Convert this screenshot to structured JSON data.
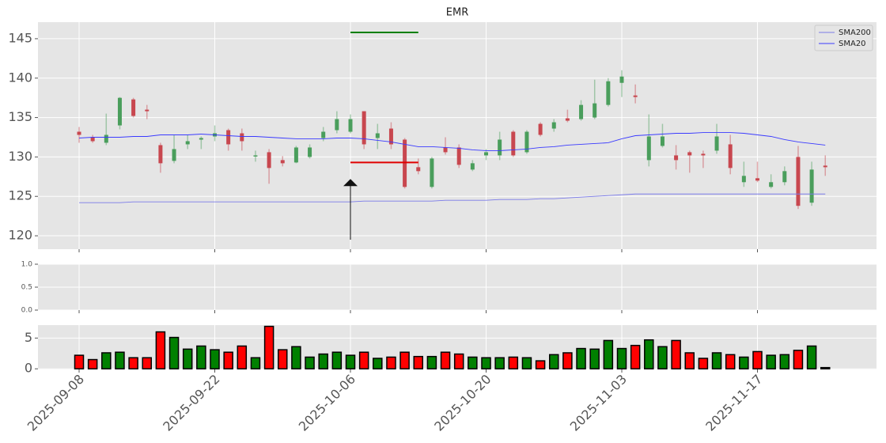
{
  "chart_data": [
    {
      "type": "candlestick",
      "title": "EMR",
      "categories": [
        "2025-09-08",
        null,
        null,
        null,
        null,
        null,
        null,
        null,
        null,
        null,
        "2025-09-22",
        null,
        null,
        null,
        null,
        null,
        null,
        null,
        null,
        null,
        "2025-10-06",
        null,
        null,
        null,
        null,
        null,
        null,
        null,
        null,
        null,
        "2025-10-20",
        null,
        null,
        null,
        null,
        null,
        null,
        null,
        null,
        null,
        "2025-11-03",
        null,
        null,
        null,
        null,
        null,
        null,
        null,
        null,
        null,
        "2025-11-17",
        null,
        null,
        null,
        null,
        null
      ],
      "open": [
        133.2,
        132.5,
        131.8,
        134.0,
        137.3,
        136.0,
        131.5,
        129.5,
        131.6,
        132.2,
        132.6,
        133.4,
        133.0,
        130.1,
        130.6,
        129.6,
        129.3,
        130.0,
        132.4,
        133.4,
        133.2,
        135.8,
        132.4,
        133.6,
        132.2,
        128.7,
        126.2,
        131.2,
        131.2,
        128.4,
        130.2,
        130.2,
        133.2,
        130.6,
        134.2,
        133.6,
        134.9,
        134.8,
        135.0,
        136.6,
        139.4,
        137.8,
        129.6,
        131.4,
        130.2,
        130.6,
        130.4,
        130.8,
        131.6,
        126.8,
        127.3,
        126.2,
        126.8,
        130.0,
        124.2,
        128.9
      ],
      "high": [
        133.8,
        132.8,
        135.5,
        137.6,
        137.5,
        136.6,
        131.8,
        132.8,
        132.8,
        132.6,
        134.0,
        133.6,
        133.6,
        130.8,
        131.0,
        130.1,
        131.4,
        131.6,
        133.8,
        135.8,
        135.4,
        135.8,
        134.2,
        134.4,
        132.4,
        129.8,
        130.0,
        132.5,
        131.6,
        129.6,
        131.0,
        133.2,
        133.4,
        133.4,
        134.4,
        134.8,
        136.0,
        137.2,
        139.8,
        140.0,
        141.0,
        139.2,
        135.4,
        134.2,
        131.5,
        130.8,
        130.8,
        134.2,
        132.8,
        129.4,
        129.4,
        127.8,
        128.8,
        131.4,
        129.4,
        130.2
      ],
      "low": [
        131.8,
        131.8,
        131.5,
        133.5,
        135.0,
        134.8,
        128.0,
        129.2,
        131.0,
        131.0,
        132.0,
        130.8,
        130.8,
        129.4,
        126.6,
        128.8,
        129.2,
        129.8,
        132.0,
        133.0,
        133.0,
        131.0,
        131.0,
        131.0,
        126.0,
        127.8,
        126.0,
        130.3,
        128.6,
        128.2,
        129.6,
        129.6,
        130.0,
        130.4,
        132.6,
        133.2,
        134.4,
        134.6,
        134.8,
        136.4,
        137.6,
        136.8,
        128.8,
        131.2,
        128.4,
        128.0,
        128.6,
        130.4,
        127.8,
        126.2,
        126.8,
        126.0,
        126.4,
        123.4,
        123.8,
        127.6
      ],
      "close": [
        132.8,
        132.0,
        132.8,
        137.5,
        135.2,
        135.8,
        129.2,
        131.0,
        132.0,
        132.4,
        133.0,
        131.6,
        132.0,
        130.2,
        128.6,
        129.2,
        131.2,
        131.2,
        133.2,
        134.8,
        134.8,
        131.6,
        133.0,
        131.6,
        126.2,
        128.2,
        129.8,
        130.6,
        129.0,
        129.2,
        130.6,
        132.2,
        130.2,
        133.2,
        132.8,
        134.4,
        134.6,
        136.6,
        136.8,
        139.6,
        140.2,
        137.6,
        132.6,
        132.6,
        129.6,
        130.2,
        130.2,
        132.6,
        128.6,
        127.6,
        127.0,
        126.8,
        128.2,
        123.8,
        128.4,
        128.7
      ],
      "up_color": "#4a9e5c",
      "down_color": "#c8474f",
      "series": [
        {
          "name": "SMA200",
          "color": "#7a7ae8",
          "values": [
            124.2,
            124.2,
            124.2,
            124.2,
            124.3,
            124.3,
            124.3,
            124.3,
            124.3,
            124.3,
            124.3,
            124.3,
            124.3,
            124.3,
            124.3,
            124.3,
            124.3,
            124.3,
            124.3,
            124.3,
            124.3,
            124.4,
            124.4,
            124.4,
            124.4,
            124.4,
            124.4,
            124.5,
            124.5,
            124.5,
            124.5,
            124.6,
            124.6,
            124.6,
            124.7,
            124.7,
            124.8,
            124.9,
            125.0,
            125.1,
            125.2,
            125.3,
            125.3,
            125.3,
            125.3,
            125.3,
            125.3,
            125.3,
            125.3,
            125.3,
            125.3,
            125.3,
            125.3,
            125.3,
            125.3,
            125.3
          ]
        },
        {
          "name": "SMA20",
          "color": "#3a3aff",
          "values": [
            132.4,
            132.5,
            132.5,
            132.5,
            132.6,
            132.6,
            132.8,
            132.8,
            132.8,
            132.9,
            132.8,
            132.7,
            132.6,
            132.6,
            132.5,
            132.4,
            132.3,
            132.3,
            132.3,
            132.4,
            132.4,
            132.3,
            132.1,
            131.9,
            131.6,
            131.3,
            131.3,
            131.2,
            131.1,
            130.9,
            130.8,
            130.8,
            130.9,
            131.0,
            131.2,
            131.3,
            131.5,
            131.6,
            131.7,
            131.8,
            132.3,
            132.7,
            132.8,
            132.9,
            133.0,
            133.0,
            133.1,
            133.1,
            133.1,
            133.0,
            132.8,
            132.6,
            132.2,
            131.9,
            131.7,
            131.5
          ]
        }
      ],
      "ylim": [
        118.3,
        147.1
      ],
      "yticks": [
        120,
        125,
        130,
        135,
        140,
        145
      ],
      "grid": true,
      "legend": "upper right",
      "lines": [
        {
          "y": 145.8,
          "x": [
            20,
            25
          ],
          "color": "#008000"
        },
        {
          "y": 129.3,
          "x": [
            20,
            25
          ],
          "color": "#e00000"
        }
      ],
      "arrow": {
        "x": 20,
        "y": [
          119.5,
          127.2
        ],
        "color": "#111"
      }
    },
    {
      "type": "empty",
      "ylim": [
        0,
        1
      ],
      "yticks": [
        {
          "value": 0,
          "label": "0.0"
        },
        {
          "value": 0.5,
          "label": "0.5"
        },
        {
          "value": 1,
          "label": "1.0"
        }
      ],
      "grid": true
    },
    {
      "type": "bar",
      "values": [
        2.2,
        1.5,
        2.6,
        2.7,
        1.8,
        1.8,
        6.0,
        5.1,
        3.2,
        3.7,
        3.1,
        2.7,
        3.7,
        1.8,
        6.9,
        3.1,
        3.6,
        1.9,
        2.4,
        2.7,
        2.2,
        2.7,
        1.7,
        1.9,
        2.7,
        2.0,
        2.0,
        2.7,
        2.4,
        1.9,
        1.8,
        1.8,
        1.9,
        1.8,
        1.3,
        2.3,
        2.6,
        3.3,
        3.2,
        4.6,
        3.3,
        3.8,
        4.7,
        3.6,
        4.6,
        2.6,
        1.7,
        2.6,
        2.3,
        1.9,
        2.8,
        2.2,
        2.3,
        3.0,
        3.7,
        0.2
      ],
      "colors": [
        "red",
        "red",
        "green",
        "green",
        "red",
        "red",
        "red",
        "green",
        "green",
        "green",
        "green",
        "red",
        "red",
        "green",
        "red",
        "red",
        "green",
        "green",
        "green",
        "green",
        "green",
        "red",
        "green",
        "red",
        "red",
        "red",
        "green",
        "red",
        "red",
        "green",
        "green",
        "green",
        "red",
        "green",
        "red",
        "green",
        "red",
        "green",
        "green",
        "green",
        "green",
        "red",
        "green",
        "green",
        "red",
        "red",
        "red",
        "green",
        "red",
        "green",
        "red",
        "green",
        "green",
        "red",
        "green",
        "#111"
      ],
      "ylim": [
        -0.1,
        7.1
      ],
      "yticks": [
        0,
        5
      ],
      "grid": true
    }
  ]
}
